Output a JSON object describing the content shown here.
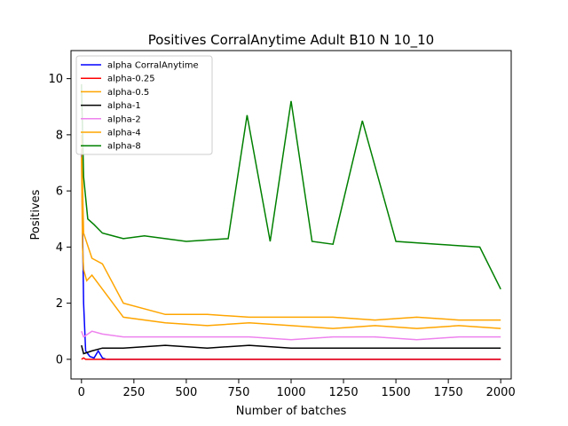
{
  "chart_data": {
    "type": "line",
    "title": "Positives CorralAnytime Adult B10 N 10_10",
    "xlabel": "Number of batches",
    "ylabel": "Positives",
    "xlim": [
      -50,
      2050
    ],
    "ylim": [
      -0.7,
      11.0
    ],
    "xticks": [
      0,
      250,
      500,
      750,
      1000,
      1250,
      1500,
      1750,
      2000
    ],
    "yticks": [
      0,
      2,
      4,
      6,
      8,
      10
    ],
    "legend_position": "top-left",
    "grid": false,
    "series": [
      {
        "name": "alpha CorralAnytime",
        "color": "#0000ff",
        "x": [
          0,
          10,
          20,
          30,
          40,
          60,
          80,
          100,
          120,
          200,
          400,
          800,
          1200,
          1600,
          2000
        ],
        "y": [
          7.5,
          2.0,
          0.3,
          0.2,
          0.1,
          0.05,
          0.3,
          0.05,
          0.0,
          0.0,
          0.0,
          0.0,
          0.0,
          0.0,
          0.0
        ]
      },
      {
        "name": "alpha-0.25",
        "color": "#ff0000",
        "x": [
          0,
          10,
          20,
          40,
          80,
          200,
          600,
          1000,
          1400,
          1800,
          2000
        ],
        "y": [
          0.0,
          0.05,
          0.0,
          0.0,
          0.0,
          0.0,
          0.0,
          0.0,
          0.0,
          0.0,
          0.0
        ]
      },
      {
        "name": "alpha-0.5",
        "color": "#ffa500",
        "x": [
          0,
          5,
          10,
          25,
          50,
          100,
          200,
          400,
          600,
          800,
          1000,
          1200,
          1400,
          1600,
          1800,
          2000
        ],
        "y": [
          7.2,
          4.0,
          3.2,
          2.8,
          3.0,
          2.5,
          1.5,
          1.3,
          1.2,
          1.3,
          1.2,
          1.1,
          1.2,
          1.1,
          1.2,
          1.1
        ]
      },
      {
        "name": "alpha-1",
        "color": "#000000",
        "x": [
          0,
          10,
          50,
          100,
          200,
          400,
          600,
          800,
          1000,
          1200,
          1400,
          1600,
          1800,
          2000
        ],
        "y": [
          0.5,
          0.2,
          0.3,
          0.4,
          0.4,
          0.5,
          0.4,
          0.5,
          0.4,
          0.4,
          0.4,
          0.4,
          0.4,
          0.4
        ]
      },
      {
        "name": "alpha-2",
        "color": "#ee82ee",
        "x": [
          0,
          10,
          50,
          100,
          200,
          400,
          600,
          800,
          1000,
          1200,
          1400,
          1600,
          1800,
          2000
        ],
        "y": [
          1.0,
          0.8,
          1.0,
          0.9,
          0.8,
          0.8,
          0.8,
          0.8,
          0.7,
          0.8,
          0.8,
          0.7,
          0.8,
          0.8
        ]
      },
      {
        "name": "alpha-4",
        "color": "#ffa500",
        "x": [
          0,
          10,
          50,
          100,
          200,
          400,
          600,
          800,
          1000,
          1200,
          1400,
          1600,
          1800,
          2000
        ],
        "y": [
          8.0,
          4.5,
          3.6,
          3.4,
          2.0,
          1.6,
          1.6,
          1.5,
          1.5,
          1.5,
          1.4,
          1.5,
          1.4,
          1.4
        ]
      },
      {
        "name": "alpha-8",
        "color": "#008000",
        "x": [
          0,
          10,
          30,
          60,
          100,
          200,
          300,
          500,
          700,
          790,
          900,
          1000,
          1100,
          1200,
          1340,
          1500,
          1700,
          1900,
          2000
        ],
        "y": [
          9.8,
          6.5,
          5.0,
          4.8,
          4.5,
          4.3,
          4.4,
          4.2,
          4.3,
          8.7,
          4.2,
          9.2,
          4.2,
          4.1,
          8.5,
          4.2,
          4.1,
          4.0,
          2.5
        ]
      }
    ]
  }
}
